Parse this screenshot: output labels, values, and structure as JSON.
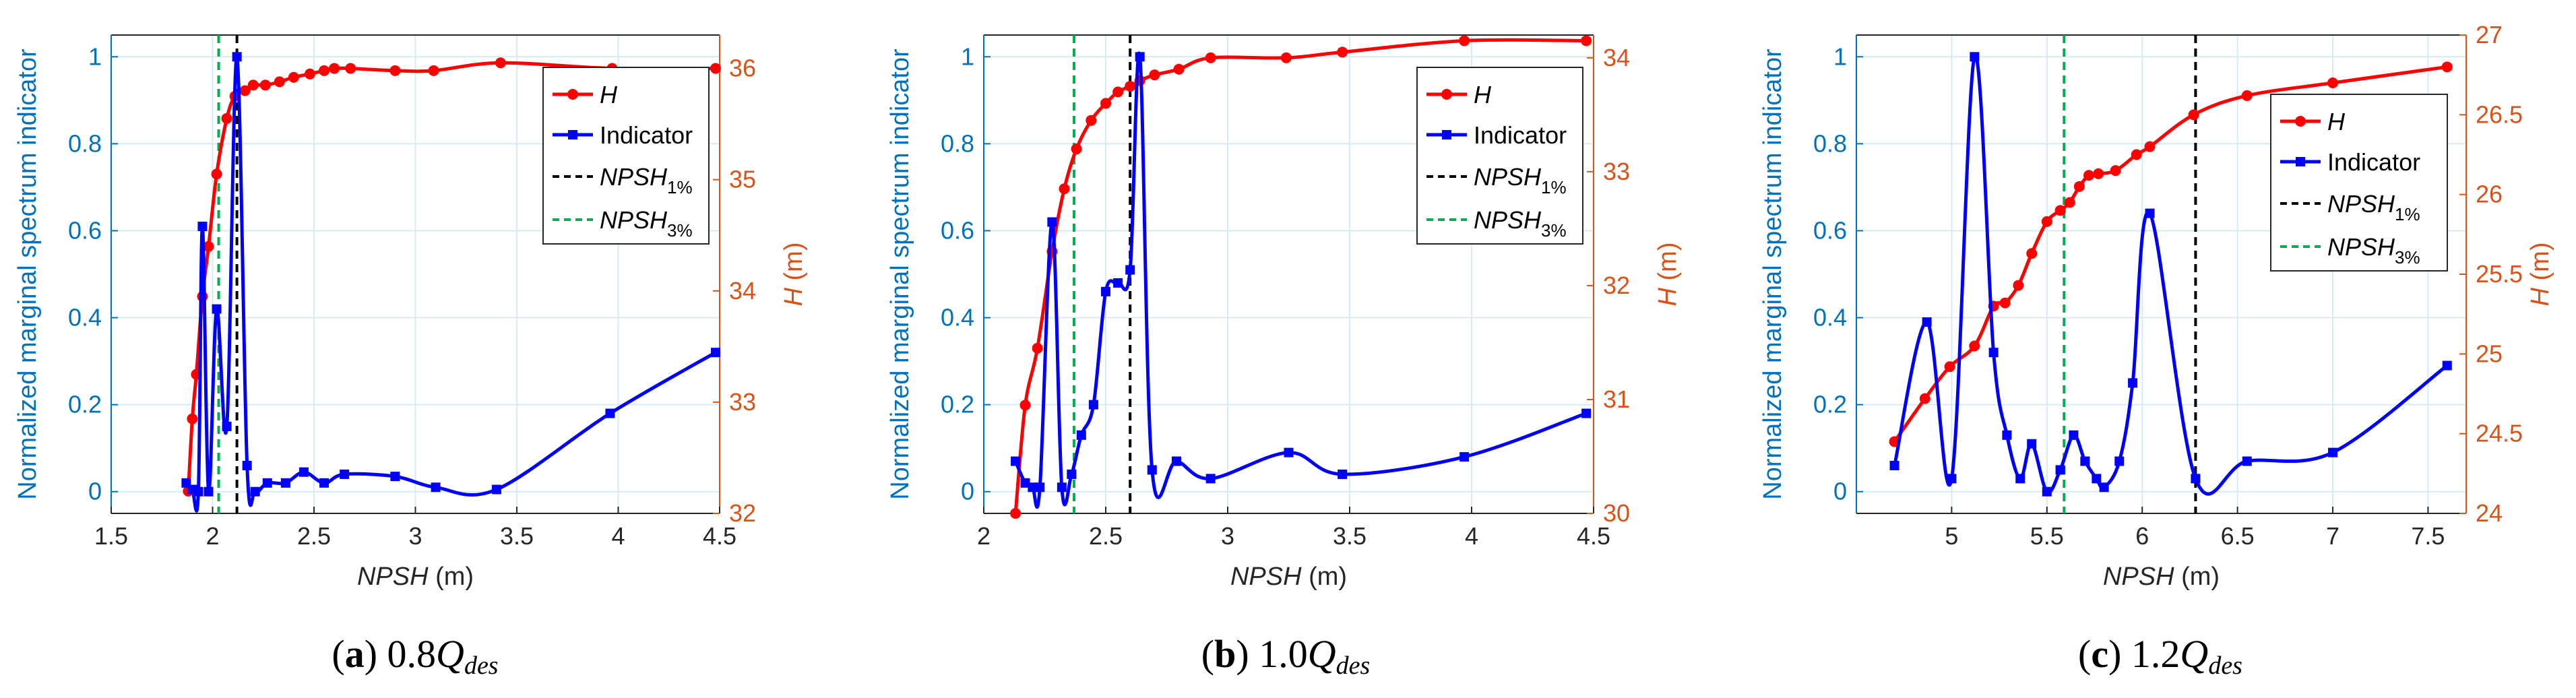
{
  "figure": {
    "colors": {
      "left_axis": "#0072BD",
      "right_axis": "#D95319",
      "H": "#FF0000",
      "indicator": "#0000FF",
      "npsh1": "#000000",
      "npsh3": "#00B050",
      "grid": "#D7EBF5",
      "axes": "#262626"
    }
  },
  "chart_data": [
    {
      "type": "line",
      "caption": {
        "letter": "(a)",
        "value": "0.8",
        "var": "Q",
        "sub": "des"
      },
      "xlabel": "NPSH (m)",
      "ylabel_left": "Normalized marginal spectrum indicator",
      "ylabel_right": "H (m)",
      "xlim": [
        1.5,
        4.5
      ],
      "xticks": [
        1.5,
        2,
        2.5,
        3,
        3.5,
        4,
        4.5
      ],
      "xticklabels": [
        "1.5",
        "2",
        "2.5",
        "3",
        "3.5",
        "4",
        "4.5"
      ],
      "ylim_left": [
        -0.05,
        1.05
      ],
      "yticks_left": [
        0,
        0.2,
        0.4,
        0.6,
        0.8,
        1
      ],
      "yticklabels_left": [
        "0",
        "0.2",
        "0.4",
        "0.6",
        "0.8",
        "1"
      ],
      "ylim_right": [
        32,
        36.3
      ],
      "yticks_right": [
        32,
        33,
        34,
        35,
        36
      ],
      "yticklabels_right": [
        "32",
        "33",
        "34",
        "35",
        "36"
      ],
      "grid": true,
      "legend_position": "top-right",
      "legend": {
        "H": "H",
        "indicator": "Indicator",
        "npsh": "NPSH",
        "s1": "1%",
        "s3": "3%"
      },
      "series": [
        {
          "name": "H",
          "axis": "right",
          "marker": "circle",
          "x": [
            1.88,
            1.9,
            1.92,
            1.95,
            1.98,
            2.02,
            2.07,
            2.11,
            2.16,
            2.2,
            2.26,
            2.33,
            2.4,
            2.48,
            2.55,
            2.6,
            2.68,
            2.9,
            3.09,
            3.42,
            3.97,
            4.48
          ],
          "y": [
            32.2,
            32.85,
            33.25,
            33.95,
            34.4,
            35.05,
            35.55,
            35.75,
            35.8,
            35.85,
            35.85,
            35.88,
            35.92,
            35.95,
            35.98,
            36.0,
            36.0,
            35.98,
            35.98,
            36.05,
            36.0,
            36.0
          ]
        },
        {
          "name": "Indicator",
          "axis": "left",
          "marker": "square",
          "x": [
            1.87,
            1.9,
            1.93,
            1.95,
            1.98,
            2.02,
            2.07,
            2.12,
            2.17,
            2.21,
            2.27,
            2.36,
            2.45,
            2.55,
            2.65,
            2.9,
            3.1,
            3.4,
            3.96,
            4.48
          ],
          "y": [
            0.02,
            0.005,
            0.0,
            0.61,
            0.0,
            0.42,
            0.15,
            1.0,
            0.06,
            0.0,
            0.02,
            0.02,
            0.045,
            0.02,
            0.04,
            0.035,
            0.01,
            0.005,
            0.18,
            0.32
          ]
        }
      ],
      "npsh1": 2.12,
      "npsh3": 2.03
    },
    {
      "type": "line",
      "caption": {
        "letter": "(b)",
        "value": "1.0",
        "var": "Q",
        "sub": "des"
      },
      "xlabel": "NPSH (m)",
      "ylabel_left": "Normalized marginal spectrum indicator",
      "ylabel_right": "H (m)",
      "xlim": [
        2,
        4.5
      ],
      "xticks": [
        2,
        2.5,
        3,
        3.5,
        4,
        4.5
      ],
      "xticklabels": [
        "2",
        "2.5",
        "3",
        "3.5",
        "4",
        "4.5"
      ],
      "ylim_left": [
        -0.05,
        1.05
      ],
      "yticks_left": [
        0,
        0.2,
        0.4,
        0.6,
        0.8,
        1
      ],
      "yticklabels_left": [
        "0",
        "0.2",
        "0.4",
        "0.6",
        "0.8",
        "1"
      ],
      "ylim_right": [
        30,
        34.2
      ],
      "yticks_right": [
        30,
        31,
        32,
        33,
        34
      ],
      "yticklabels_right": [
        "30",
        "31",
        "32",
        "33",
        "34"
      ],
      "grid": true,
      "legend_position": "top-right",
      "legend": {
        "H": "H",
        "indicator": "Indicator",
        "npsh": "NPSH",
        "s1": "1%",
        "s3": "3%"
      },
      "series": [
        {
          "name": "H",
          "axis": "right",
          "marker": "circle",
          "x": [
            2.13,
            2.17,
            2.22,
            2.28,
            2.33,
            2.38,
            2.44,
            2.5,
            2.55,
            2.6,
            2.64,
            2.7,
            2.8,
            2.93,
            3.24,
            3.47,
            3.97,
            4.47
          ],
          "y": [
            30.0,
            30.95,
            31.45,
            32.3,
            32.85,
            33.2,
            33.45,
            33.6,
            33.7,
            33.75,
            33.8,
            33.85,
            33.9,
            34.0,
            34.0,
            34.05,
            34.15,
            34.15
          ]
        },
        {
          "name": "Indicator",
          "axis": "left",
          "marker": "square",
          "x": [
            2.13,
            2.17,
            2.2,
            2.23,
            2.28,
            2.32,
            2.36,
            2.4,
            2.45,
            2.5,
            2.55,
            2.6,
            2.64,
            2.69,
            2.79,
            2.93,
            3.25,
            3.47,
            3.97,
            4.47
          ],
          "y": [
            0.07,
            0.02,
            0.01,
            0.01,
            0.62,
            0.01,
            0.04,
            0.13,
            0.2,
            0.46,
            0.48,
            0.51,
            1.0,
            0.05,
            0.07,
            0.03,
            0.09,
            0.04,
            0.08,
            0.18
          ]
        }
      ],
      "npsh1": 2.6,
      "npsh3": 2.37
    },
    {
      "type": "line",
      "caption": {
        "letter": "(c)",
        "value": "1.2",
        "var": "Q",
        "sub": "des"
      },
      "xlabel": "NPSH (m)",
      "ylabel_left": "Normalized marginal spectrum indicator",
      "ylabel_right": "H (m)",
      "xlim": [
        4.5,
        7.7
      ],
      "xticks": [
        5,
        5.5,
        6,
        6.5,
        7,
        7.5
      ],
      "xticklabels": [
        "5",
        "5.5",
        "6",
        "6.5",
        "7",
        "7.5"
      ],
      "ylim_left": [
        -0.05,
        1.05
      ],
      "yticks_left": [
        0,
        0.2,
        0.4,
        0.6,
        0.8,
        1
      ],
      "yticklabels_left": [
        "0",
        "0.2",
        "0.4",
        "0.6",
        "0.8",
        "1"
      ],
      "ylim_right": [
        24,
        27
      ],
      "yticks_right": [
        24,
        24.5,
        25,
        25.5,
        26,
        26.5,
        27
      ],
      "yticklabels_right": [
        "24",
        "24.5",
        "25",
        "25.5",
        "26",
        "26.5",
        "27"
      ],
      "grid": true,
      "legend_position": "top-right",
      "legend": {
        "H": "H",
        "indicator": "Indicator",
        "npsh": "NPSH",
        "s1": "1%",
        "s3": "3%"
      },
      "series": [
        {
          "name": "H",
          "axis": "right",
          "marker": "circle",
          "x": [
            4.7,
            4.86,
            4.99,
            5.12,
            5.22,
            5.28,
            5.35,
            5.42,
            5.5,
            5.57,
            5.62,
            5.67,
            5.72,
            5.77,
            5.86,
            5.97,
            6.04,
            6.27,
            6.55,
            7.0,
            7.6
          ],
          "y": [
            24.45,
            24.72,
            24.92,
            25.05,
            25.3,
            25.32,
            25.43,
            25.63,
            25.83,
            25.9,
            25.95,
            26.05,
            26.12,
            26.13,
            26.15,
            26.25,
            26.3,
            26.5,
            26.62,
            26.7,
            26.8
          ]
        },
        {
          "name": "Indicator",
          "axis": "left",
          "marker": "square",
          "x": [
            4.7,
            4.87,
            5.0,
            5.12,
            5.22,
            5.29,
            5.36,
            5.42,
            5.5,
            5.57,
            5.64,
            5.7,
            5.76,
            5.8,
            5.88,
            5.95,
            6.04,
            6.28,
            6.55,
            7.0,
            7.6
          ],
          "y": [
            0.06,
            0.39,
            0.03,
            1.0,
            0.32,
            0.13,
            0.03,
            0.11,
            0.0,
            0.05,
            0.13,
            0.07,
            0.03,
            0.01,
            0.07,
            0.25,
            0.64,
            0.03,
            0.07,
            0.09,
            0.29
          ]
        }
      ],
      "npsh1": 6.28,
      "npsh3": 5.59
    }
  ]
}
